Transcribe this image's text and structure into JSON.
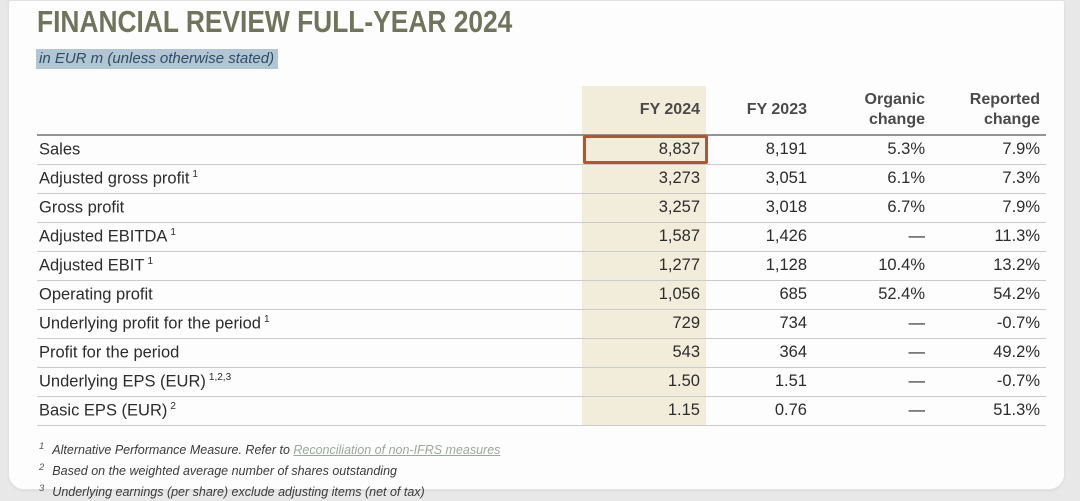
{
  "title": "FINANCIAL REVIEW FULL-YEAR 2024",
  "subtitle": "in EUR m (unless otherwise stated)",
  "table": {
    "headers": {
      "fy2024": "FY 2024",
      "fy2023": "FY 2023",
      "organic": [
        "Organic",
        "change"
      ],
      "reported": [
        "Reported",
        "change"
      ]
    },
    "rows": [
      {
        "label": "Sales",
        "fy2024": "8,837",
        "fy2023": "8,191",
        "organic": "5.3%",
        "reported": "7.9%",
        "highlighted": true
      },
      {
        "label": "Adjusted gross profit",
        "sup": "1",
        "fy2024": "3,273",
        "fy2023": "3,051",
        "organic": "6.1%",
        "reported": "7.3%"
      },
      {
        "label": "Gross profit",
        "fy2024": "3,257",
        "fy2023": "3,018",
        "organic": "6.7%",
        "reported": "7.9%"
      },
      {
        "label": "Adjusted EBITDA",
        "sup": "1",
        "fy2024": "1,587",
        "fy2023": "1,426",
        "organic": "—",
        "reported": "11.3%"
      },
      {
        "label": "Adjusted EBIT",
        "sup": "1",
        "fy2024": "1,277",
        "fy2023": "1,128",
        "organic": "10.4%",
        "reported": "13.2%"
      },
      {
        "label": "Operating profit",
        "fy2024": "1,056",
        "fy2023": "685",
        "organic": "52.4%",
        "reported": "54.2%"
      },
      {
        "label": "Underlying profit for the period",
        "sup": "1",
        "fy2024": "729",
        "fy2023": "734",
        "organic": "—",
        "reported": "-0.7%"
      },
      {
        "label": "Profit for the period",
        "fy2024": "543",
        "fy2023": "364",
        "organic": "—",
        "reported": "49.2%"
      },
      {
        "label": "Underlying EPS (EUR)",
        "sup": "1,2,3",
        "fy2024": "1.50",
        "fy2023": "1.51",
        "organic": "—",
        "reported": "-0.7%"
      },
      {
        "label": "Basic EPS (EUR)",
        "sup": "2",
        "fy2024": "1.15",
        "fy2023": "0.76",
        "organic": "—",
        "reported": "51.3%"
      }
    ]
  },
  "footnotes": [
    {
      "ref": "1",
      "text": "Alternative Performance Measure. Refer to ",
      "link_text": "Reconciliation of non-IFRS measures"
    },
    {
      "ref": "2",
      "text": "Based on the weighted average number of shares outstanding"
    },
    {
      "ref": "3",
      "text": "Underlying earnings (per share) exclude adjusting items (net of tax)"
    }
  ],
  "colors": {
    "title": "#70745b",
    "subtitle_text": "#2e4d66",
    "subtitle_highlight": "#b1c5d2",
    "fy2024_column_highlight": "#f2ecdb",
    "sales_box_border": "#b85330",
    "header_rule": "#949494",
    "row_rule": "#cbcbcb",
    "body_text": "#2c2c2c",
    "footnote_link": "#9aa89b"
  }
}
